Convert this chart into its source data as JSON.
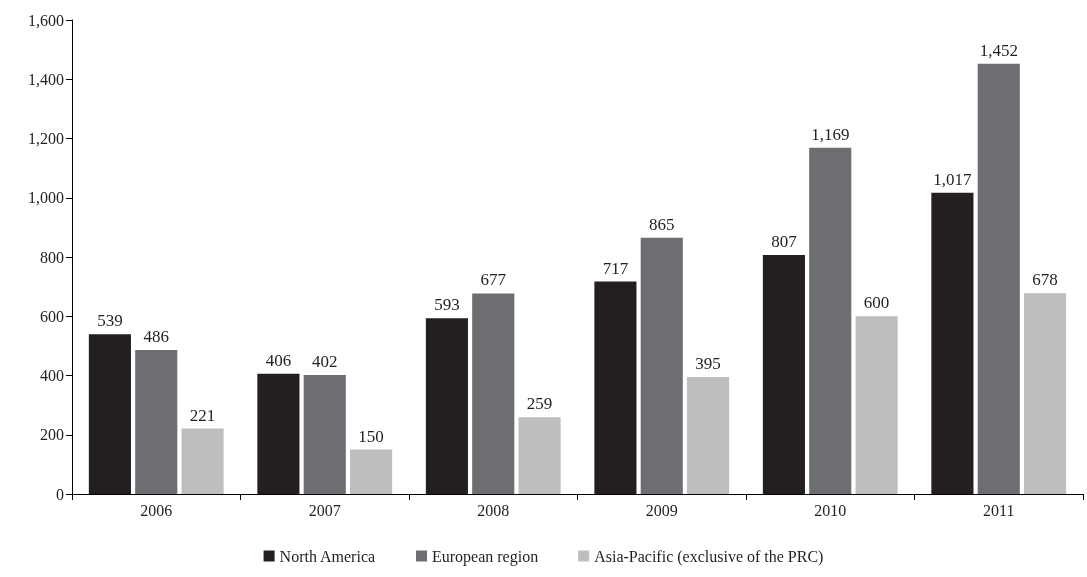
{
  "chart_data": {
    "type": "bar",
    "categories": [
      "2006",
      "2007",
      "2008",
      "2009",
      "2010",
      "2011"
    ],
    "series": [
      {
        "name": "North America",
        "color": "#231f20",
        "values": [
          539,
          406,
          593,
          717,
          807,
          1017
        ],
        "value_labels": [
          "539",
          "406",
          "593",
          "717",
          "807",
          "1,017"
        ]
      },
      {
        "name": "European region",
        "color": "#6d6e71",
        "values": [
          486,
          402,
          677,
          865,
          1169,
          1452
        ],
        "value_labels": [
          "486",
          "402",
          "677",
          "865",
          "1,169",
          "1,452"
        ]
      },
      {
        "name": "Asia-Pacific (exclusive of the PRC)",
        "color": "#bcbec0",
        "values": [
          221,
          150,
          259,
          395,
          600,
          678
        ],
        "value_labels": [
          "221",
          "150",
          "259",
          "395",
          "600",
          "678"
        ]
      }
    ],
    "ylim": [
      0,
      1600
    ],
    "yticks": [
      0,
      200,
      400,
      600,
      800,
      {
        "value": 1000,
        "label": "1,000"
      },
      {
        "value": 1200,
        "label": "1,200"
      },
      {
        "value": 1400,
        "label": "1,400"
      },
      {
        "value": 1600,
        "label": "1,600"
      }
    ],
    "grid": false,
    "legend": "bottom"
  }
}
